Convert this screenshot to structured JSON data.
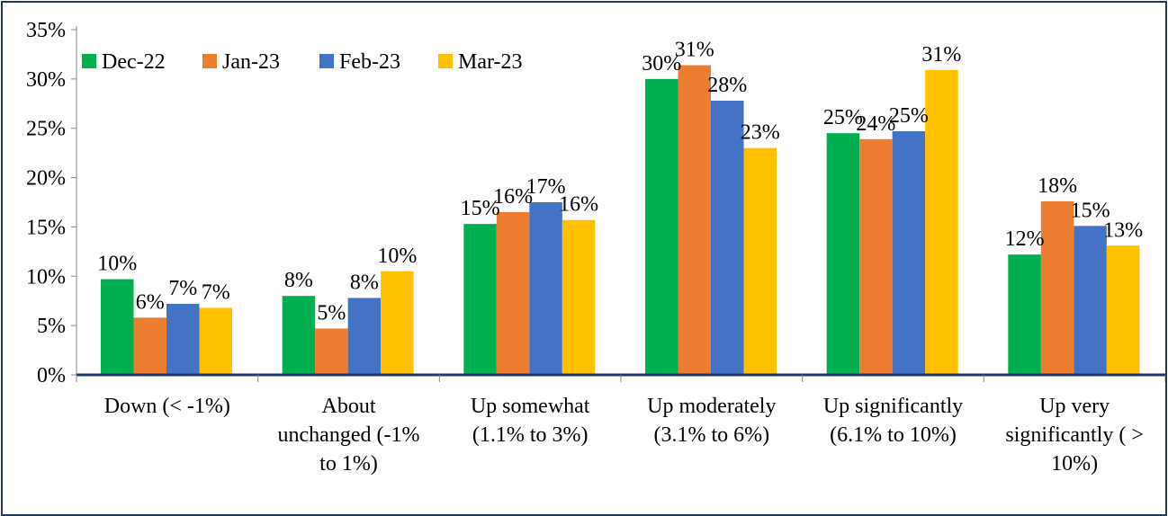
{
  "chart_data": {
    "type": "bar",
    "title": "",
    "xlabel": "",
    "ylabel": "",
    "ylim": [
      0,
      35
    ],
    "ytick_step": 5,
    "ytick_labels": [
      "0%",
      "5%",
      "10%",
      "15%",
      "20%",
      "25%",
      "30%",
      "35%"
    ],
    "grid": false,
    "legend_position": "top-left",
    "categories": [
      [
        "Down (< -1%)"
      ],
      [
        "About",
        "unchanged (-1%",
        "to 1%)"
      ],
      [
        "Up somewhat",
        "(1.1% to 3%)"
      ],
      [
        "Up moderately",
        "(3.1% to 6%)"
      ],
      [
        "Up significantly",
        "(6.1% to 10%)"
      ],
      [
        "Up very",
        "significantly ( >",
        "10%)"
      ]
    ],
    "series": [
      {
        "name": "Dec-22",
        "color": "#00b050",
        "values": [
          9.7,
          8.0,
          15.3,
          30.0,
          24.5,
          12.2
        ],
        "labels": [
          "10%",
          "8%",
          "15%",
          "30%",
          "25%",
          "12%"
        ]
      },
      {
        "name": "Jan-23",
        "color": "#ed7d31",
        "values": [
          5.8,
          4.7,
          16.5,
          31.4,
          23.9,
          17.6
        ],
        "labels": [
          "6%",
          "5%",
          "16%",
          "31%",
          "24%",
          "18%"
        ]
      },
      {
        "name": "Feb-23",
        "color": "#4472c4",
        "values": [
          7.2,
          7.8,
          17.5,
          27.8,
          24.7,
          15.1
        ],
        "labels": [
          "7%",
          "8%",
          "17%",
          "28%",
          "25%",
          "15%"
        ]
      },
      {
        "name": "Mar-23",
        "color": "#ffc000",
        "values": [
          6.8,
          10.5,
          15.7,
          23.0,
          30.9,
          13.1
        ],
        "labels": [
          "7%",
          "10%",
          "16%",
          "23%",
          "31%",
          "13%"
        ]
      }
    ]
  }
}
